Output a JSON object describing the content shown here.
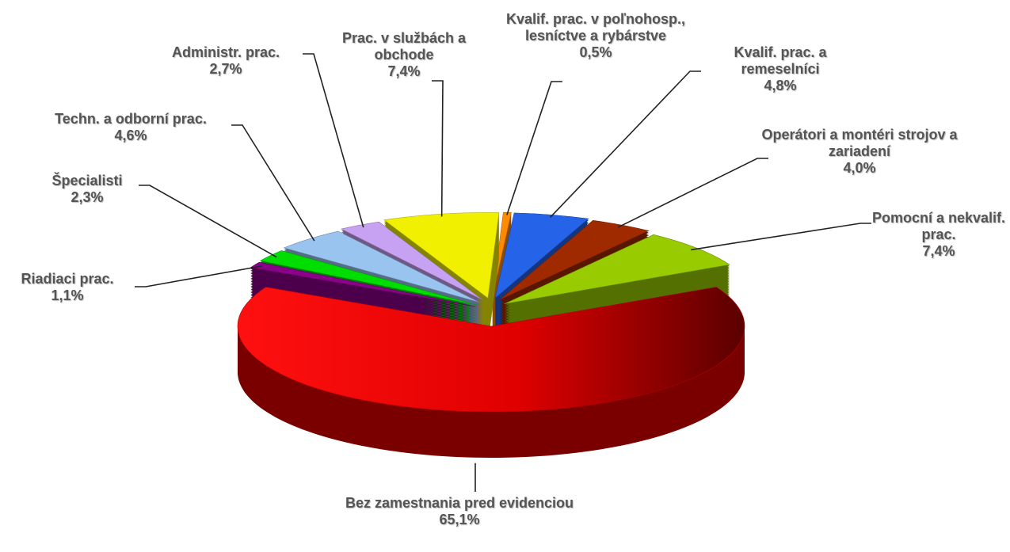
{
  "chart_data": {
    "type": "pie",
    "categories": [
      "Bez zamestnania pred evidenciou",
      "Riadiaci prac.",
      "Špecialisti",
      "Techn. a odborní prac.",
      "Administr. prac.",
      "Prac. v službách a obchode",
      "Kvalif. prac. v poľnohosp., lesníctve a rybárstve",
      "Kvalif. prac. a remeselníci",
      "Operátori a montéri strojov a zariadení",
      "Pomocní a nekvalif. prac."
    ],
    "values": [
      65.1,
      1.1,
      2.3,
      4.6,
      2.7,
      7.4,
      0.5,
      4.8,
      4.0,
      7.4
    ],
    "value_labels": [
      "65,1%",
      "1,1%",
      "2,3%",
      "4,6%",
      "2,7%",
      "7,4%",
      "0,5%",
      "4,8%",
      "4,0%",
      "7,4%"
    ],
    "colors": [
      "#ff0000",
      "#8b008b",
      "#00dd00",
      "#99c4f0",
      "#c8a2f2",
      "#f0f000",
      "#ff8c00",
      "#2563e8",
      "#a02a00",
      "#99cc00"
    ]
  }
}
